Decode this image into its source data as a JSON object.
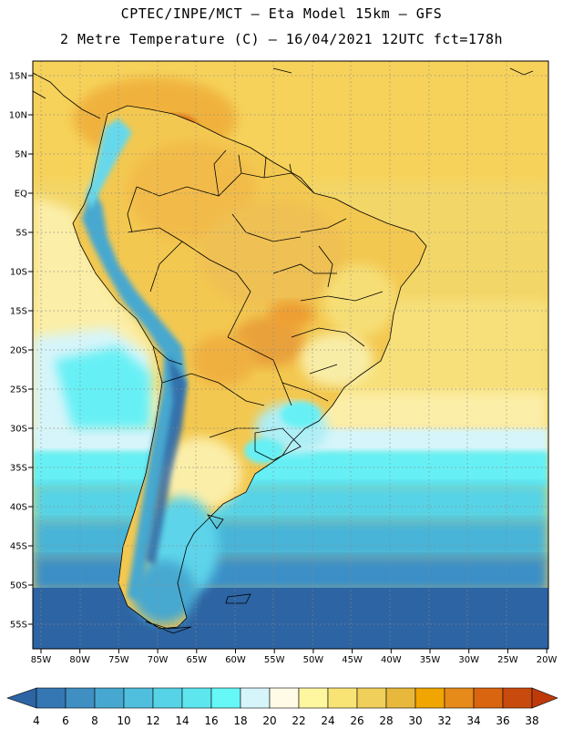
{
  "header": {
    "line1": "CPTEC/INPE/MCT –  Eta Model 15km – GFS",
    "line2": "2 Metre Temperature (C) – 16/04/2021 12UTC fct=178h"
  },
  "map": {
    "lon_range": [
      -86,
      -20
    ],
    "lat_range": [
      -58,
      17
    ],
    "lat_ticks": [
      "15N",
      "10N",
      "5N",
      "EQ",
      "5S",
      "10S",
      "15S",
      "20S",
      "25S",
      "30S",
      "35S",
      "40S",
      "45S",
      "50S",
      "55S"
    ],
    "lon_ticks": [
      "85W",
      "80W",
      "75W",
      "70W",
      "65W",
      "60W",
      "55W",
      "50W",
      "45W",
      "40W",
      "35W",
      "30W",
      "25W",
      "20W"
    ]
  },
  "colorbar": {
    "labels": [
      "4",
      "6",
      "8",
      "10",
      "12",
      "14",
      "16",
      "18",
      "20",
      "22",
      "24",
      "26",
      "28",
      "30",
      "32",
      "34",
      "36",
      "38"
    ],
    "colors": [
      "#2d64a3",
      "#3577b3",
      "#3f8fc3",
      "#46a8d0",
      "#50bedd",
      "#56d3e6",
      "#5ee6ef",
      "#66f7f7",
      "#d6f5fa",
      "#fffbe6",
      "#fff6a0",
      "#f8e474",
      "#f0cf5a",
      "#e8b83c",
      "#f0a500",
      "#e68a1a",
      "#d96510",
      "#c84a0c",
      "#bf3a0a"
    ]
  }
}
